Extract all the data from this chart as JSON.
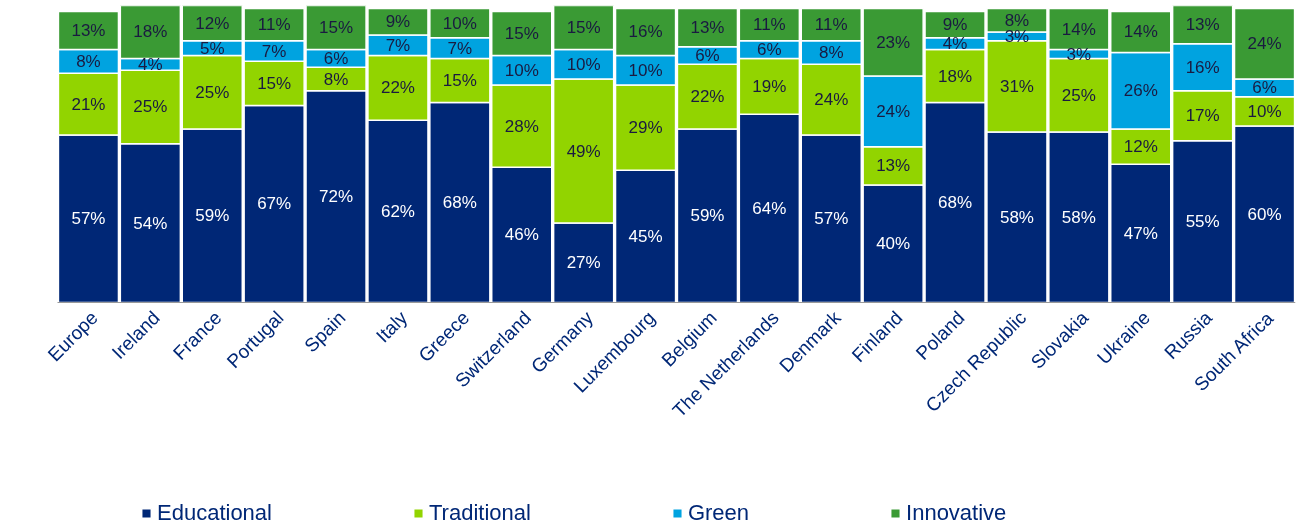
{
  "chart_data": {
    "type": "bar",
    "stacked": true,
    "categories": [
      "Europe",
      "Ireland",
      "France",
      "Portugal",
      "Spain",
      "Italy",
      "Greece",
      "Switzerland",
      "Germany",
      "Luxembourg",
      "Belgium",
      "The Netherlands",
      "Denmark",
      "Finland",
      "Poland",
      "Czech Republic",
      "Slovakia",
      "Ukraine",
      "Russia",
      "South Africa"
    ],
    "series": [
      {
        "name": "Educational",
        "color": "#002776",
        "values": [
          57,
          54,
          59,
          67,
          72,
          62,
          68,
          46,
          27,
          45,
          59,
          64,
          57,
          40,
          68,
          58,
          58,
          47,
          55,
          60
        ],
        "value_labels": [
          "57%",
          "54%",
          "59%",
          "67%",
          "72%",
          "62%",
          "68%",
          "46%",
          "27%",
          "45%",
          "59%",
          "64%",
          "57%",
          "40%",
          "68%",
          "58%",
          "58%",
          "47%",
          "55%",
          "60%"
        ]
      },
      {
        "name": "Traditional",
        "color": "#92d400",
        "values": [
          21,
          25,
          25,
          15,
          8,
          22,
          15,
          28,
          49,
          29,
          22,
          19,
          24,
          13,
          18,
          31,
          25,
          12,
          17,
          10
        ],
        "value_labels": [
          "21%",
          "25%",
          "25%",
          "15%",
          "8%",
          "22%",
          "15%",
          "28%",
          "49%",
          "29%",
          "22%",
          "19%",
          "24%",
          "13%",
          "18%",
          "31%",
          "25%",
          "12%",
          "17%",
          "10%"
        ]
      },
      {
        "name": "Green",
        "color": "#00a3e0",
        "values": [
          8,
          4,
          5,
          7,
          6,
          7,
          7,
          10,
          10,
          10,
          6,
          6,
          8,
          24,
          4,
          3,
          3,
          26,
          16,
          6
        ],
        "value_labels": [
          "8%",
          "4%",
          "5%",
          "7%",
          "6%",
          "7%",
          "7%",
          "10%",
          "10%",
          "10%",
          "6%",
          "6%",
          "8%",
          "24%",
          "4%",
          "3%",
          "3%",
          "26%",
          "16%",
          "6%"
        ]
      },
      {
        "name": "Innovative",
        "color": "#3a9a34",
        "values": [
          13,
          18,
          12,
          11,
          15,
          9,
          10,
          15,
          15,
          16,
          13,
          11,
          11,
          23,
          9,
          8,
          14,
          14,
          13,
          24
        ],
        "value_labels": [
          "13%",
          "18%",
          "12%",
          "11%",
          "15%",
          "9%",
          "10%",
          "15%",
          "15%",
          "16%",
          "13%",
          "11%",
          "11%",
          "23%",
          "9%",
          "8%",
          "14%",
          "14%",
          "13%",
          "24%"
        ]
      }
    ],
    "ylim": [
      0,
      101
    ],
    "grid": false,
    "legend": "bottom",
    "tick_labels": "x"
  }
}
